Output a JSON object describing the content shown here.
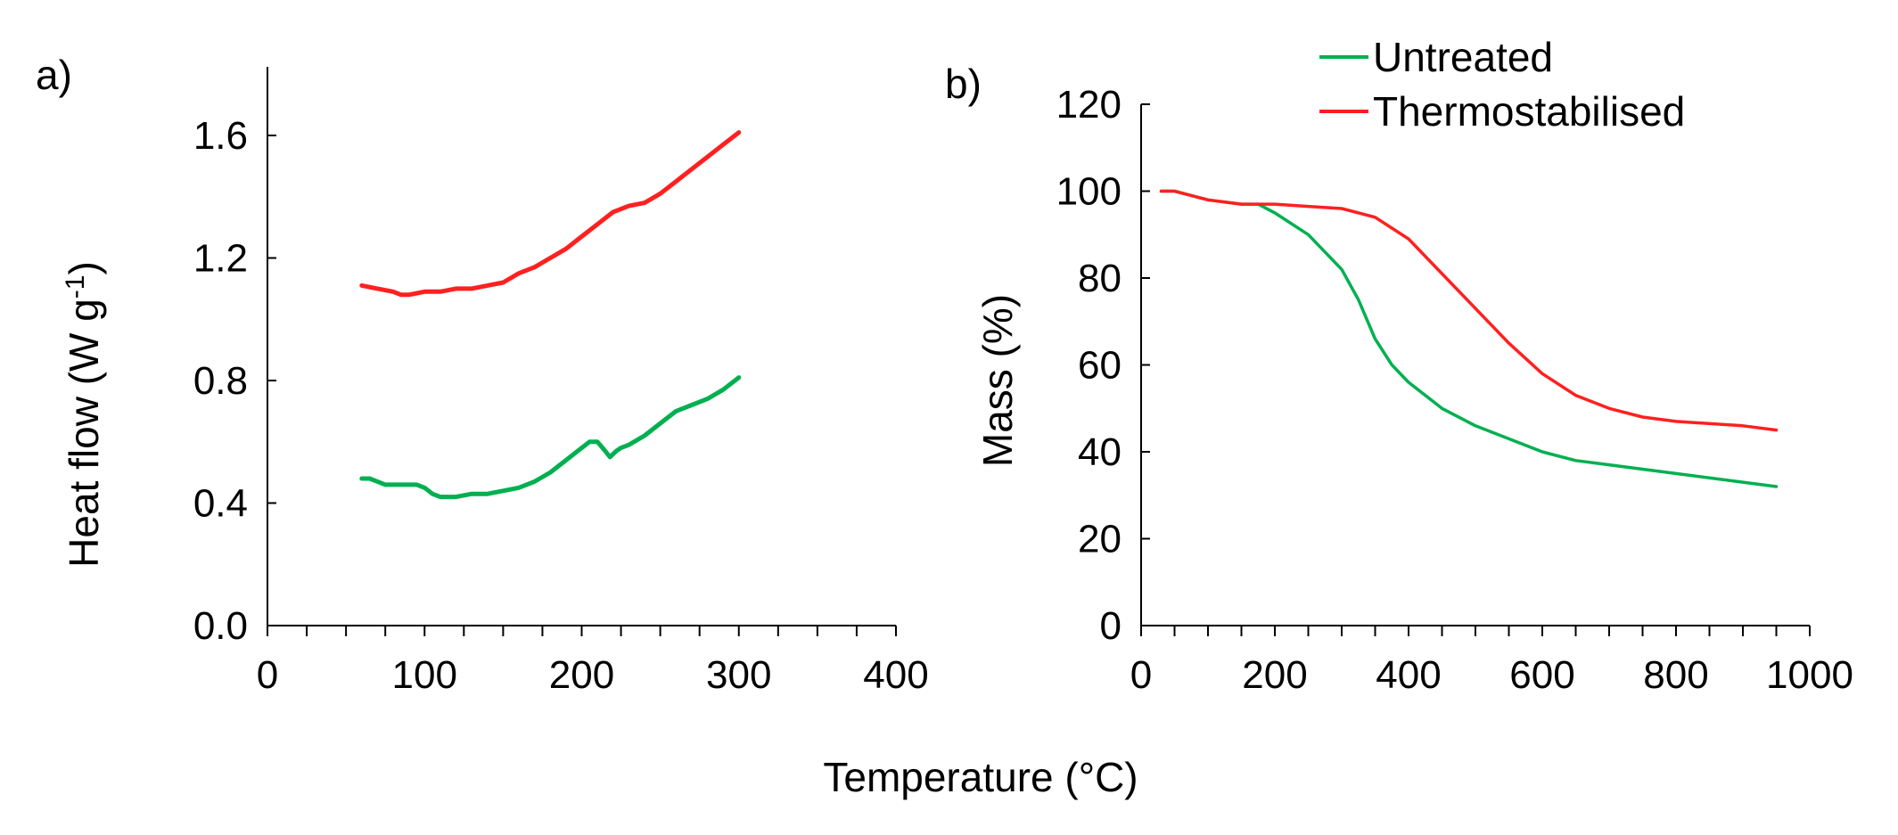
{
  "figure": {
    "shared_xlabel": "Temperature (°C)"
  },
  "colors": {
    "untreated": "#00b050",
    "thermostabilised": "#ff2020"
  },
  "chart_data": [
    {
      "panel": "a)",
      "type": "line",
      "title": "",
      "xlabel": "",
      "ylabel": "Heat flow (W g",
      "ylabel_sup": "-1",
      "ylabel_close": ")",
      "xlim": [
        0,
        400
      ],
      "ylim": [
        0.0,
        1.8
      ],
      "xticks": [
        0,
        100,
        200,
        300,
        400
      ],
      "xtick_labels": [
        "0",
        "100",
        "200",
        "300",
        "400"
      ],
      "xminor_step": 25,
      "yticks": [
        0.0,
        0.4,
        0.8,
        1.2,
        1.6
      ],
      "ytick_labels": [
        "0.0",
        "0.4",
        "0.8",
        "1.2",
        "1.6"
      ],
      "series": [
        {
          "name": "Thermostabilised",
          "color_key": "thermostabilised",
          "x": [
            60,
            70,
            80,
            85,
            90,
            100,
            110,
            120,
            130,
            140,
            150,
            160,
            170,
            180,
            190,
            200,
            210,
            220,
            230,
            240,
            250,
            260,
            270,
            280,
            290,
            300
          ],
          "y": [
            1.11,
            1.1,
            1.09,
            1.08,
            1.08,
            1.09,
            1.09,
            1.1,
            1.1,
            1.11,
            1.12,
            1.15,
            1.17,
            1.2,
            1.23,
            1.27,
            1.31,
            1.35,
            1.37,
            1.38,
            1.41,
            1.45,
            1.49,
            1.53,
            1.57,
            1.61
          ]
        },
        {
          "name": "Untreated",
          "color_key": "untreated",
          "x": [
            60,
            65,
            70,
            75,
            80,
            90,
            95,
            100,
            105,
            110,
            120,
            130,
            140,
            150,
            160,
            170,
            180,
            190,
            200,
            205,
            210,
            215,
            218,
            222,
            225,
            230,
            240,
            250,
            260,
            270,
            280,
            290,
            300
          ],
          "y": [
            0.48,
            0.48,
            0.47,
            0.46,
            0.46,
            0.46,
            0.46,
            0.45,
            0.43,
            0.42,
            0.42,
            0.43,
            0.43,
            0.44,
            0.45,
            0.47,
            0.5,
            0.54,
            0.58,
            0.6,
            0.6,
            0.57,
            0.55,
            0.57,
            0.58,
            0.59,
            0.62,
            0.66,
            0.7,
            0.72,
            0.74,
            0.77,
            0.81
          ]
        }
      ]
    },
    {
      "panel": "b)",
      "type": "line",
      "title": "",
      "xlabel": "",
      "ylabel": "Mass (%)",
      "xlim": [
        0,
        1000
      ],
      "ylim": [
        0,
        120
      ],
      "xticks": [
        0,
        200,
        400,
        600,
        800,
        1000
      ],
      "xtick_labels": [
        "0",
        "200",
        "400",
        "600",
        "800",
        "1000"
      ],
      "xminor_step": 50,
      "yticks": [
        0,
        20,
        40,
        60,
        80,
        100,
        120
      ],
      "ytick_labels": [
        "0",
        "20",
        "40",
        "60",
        "80",
        "100",
        "120"
      ],
      "legend": {
        "position": "top-right",
        "entries": [
          "Untreated",
          "Thermostabilised"
        ]
      },
      "series": [
        {
          "name": "Untreated",
          "color_key": "untreated",
          "x": [
            30,
            50,
            75,
            100,
            150,
            175,
            200,
            250,
            300,
            325,
            350,
            375,
            400,
            450,
            500,
            550,
            600,
            650,
            700,
            800,
            900,
            950
          ],
          "y": [
            100,
            100,
            99,
            98,
            97,
            97,
            95,
            90,
            82,
            75,
            66,
            60,
            56,
            50,
            46,
            43,
            40,
            38,
            37,
            35,
            33,
            32
          ]
        },
        {
          "name": "Thermostabilised",
          "color_key": "thermostabilised",
          "x": [
            30,
            50,
            75,
            100,
            150,
            200,
            250,
            300,
            350,
            400,
            450,
            500,
            550,
            600,
            650,
            700,
            750,
            800,
            900,
            950
          ],
          "y": [
            100,
            100,
            99,
            98,
            97,
            97,
            96.5,
            96,
            94,
            89,
            81,
            73,
            65,
            58,
            53,
            50,
            48,
            47,
            46,
            45
          ]
        }
      ]
    }
  ]
}
